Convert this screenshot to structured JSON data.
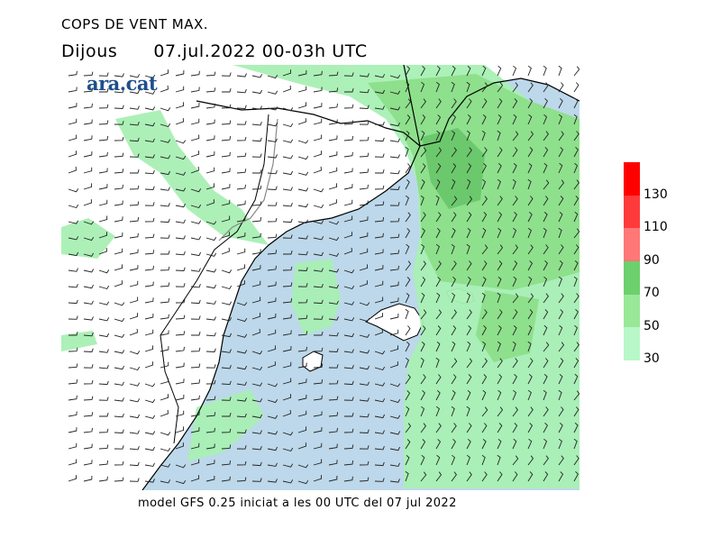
{
  "header": {
    "title": "COPS DE VENT MAX.",
    "day": "Dijous",
    "period": "07.jul.2022  00-03h  UTC"
  },
  "logo": {
    "text": "ara.cat"
  },
  "footer": {
    "text": "model GFS 0.25 iniciat a les 00 UTC del 07 jul 2022"
  },
  "legend": {
    "labels": [
      "130",
      "110",
      "90",
      "70",
      "50",
      "30"
    ],
    "colors": [
      "#ff0000",
      "#ff3a3a",
      "#ff7777",
      "#6cd06c",
      "#98e898",
      "#b8f8c8"
    ]
  },
  "map": {
    "sea_color": "#bcd8ea",
    "land_color": "#ffffff",
    "gust_color_30": "#a8f0b4",
    "gust_color_50": "#8ee08c",
    "gust_color_70": "#6cc86c"
  }
}
